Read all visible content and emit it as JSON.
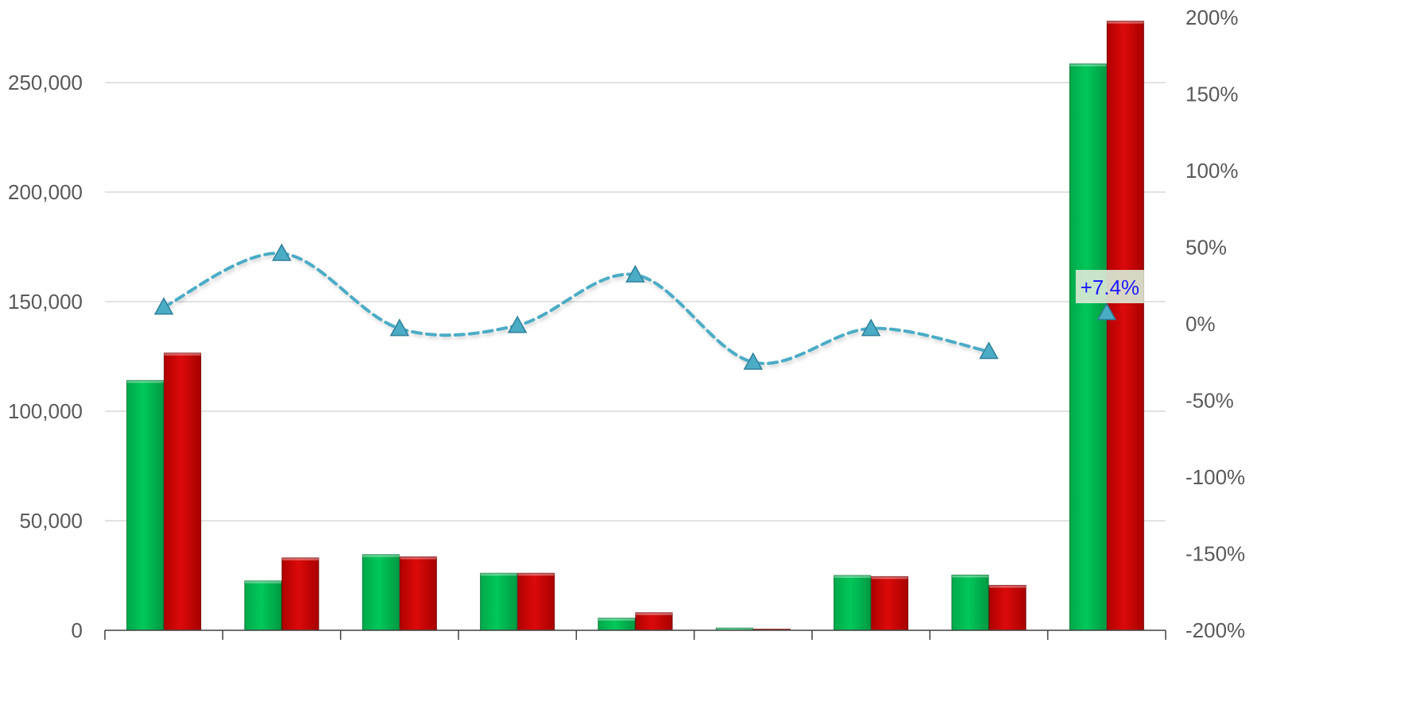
{
  "chart_data": {
    "type": "bar",
    "categories": [
      "",
      "",
      "",
      "",
      "",
      "",
      "",
      "",
      ""
    ],
    "series": [
      {
        "color": "#00b050",
        "values": [
          114000,
          22500,
          34500,
          26000,
          5500,
          1000,
          25000,
          25200,
          258500
        ]
      },
      {
        "color": "#c00000",
        "values": [
          126500,
          33000,
          33500,
          26000,
          8000,
          400,
          24500,
          20500,
          278000
        ]
      }
    ],
    "line_series": {
      "axis": "secondary",
      "color": "#4bacc6",
      "style": "dashed-smooth",
      "marker": "triangle",
      "values": [
        11,
        46,
        -3,
        -1,
        32,
        -25,
        -3,
        -18,
        7.4
      ]
    },
    "ylim": [
      0,
      290000
    ],
    "y2lim": [
      -200,
      200
    ],
    "y_ticks": [
      {
        "value": 0,
        "label": "0"
      },
      {
        "value": 50000,
        "label": "50,000"
      },
      {
        "value": 100000,
        "label": "100,000"
      },
      {
        "value": 150000,
        "label": "150,000"
      },
      {
        "value": 200000,
        "label": "200,000"
      },
      {
        "value": 250000,
        "label": "250,000"
      }
    ],
    "y2_ticks": [
      {
        "value": 200,
        "label": "200%"
      },
      {
        "value": 150,
        "label": "150%"
      },
      {
        "value": 100,
        "label": "100%"
      },
      {
        "value": 50,
        "label": "50%"
      },
      {
        "value": 0,
        "label": "0%"
      },
      {
        "value": -50,
        "label": "-50%"
      },
      {
        "value": -100,
        "label": "-100%"
      },
      {
        "value": -150,
        "label": "-150%"
      },
      {
        "value": -200,
        "label": "-200%"
      }
    ],
    "data_label": {
      "category_index": 8,
      "text": "+7.4%"
    },
    "grid": true,
    "legend": "none"
  }
}
